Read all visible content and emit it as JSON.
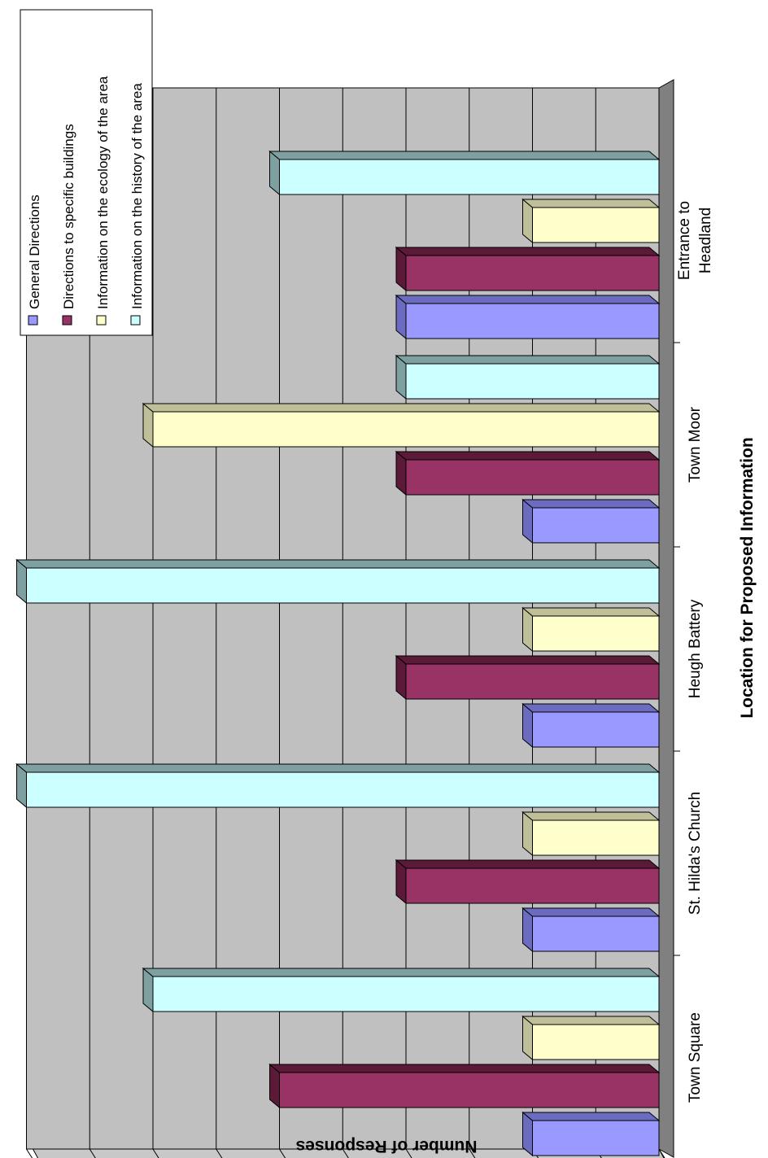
{
  "chart_data": {
    "type": "bar",
    "orientation": "3d-clustered-column, image rotated 90 degrees clockwise",
    "xlabel": "Location for Proposed Information",
    "ylabel": "Number of Responses",
    "ylim": [
      0,
      5
    ],
    "y_ticks": [
      "0",
      "0.5",
      "1",
      "1.5",
      "2",
      "2.5",
      "3",
      "3.5",
      "4",
      "4.5",
      "5"
    ],
    "grid": true,
    "legend_position": "top-right",
    "categories": [
      "Town Square",
      "St. Hilda's Church",
      "Heugh Battery",
      "Town Moor",
      "Entrance to Headland"
    ],
    "series": [
      {
        "name": "General Directions",
        "values": [
          1,
          1,
          1,
          1,
          2
        ],
        "color": "#9999ff"
      },
      {
        "name": "Directions to specific buildings",
        "values": [
          3,
          2,
          2,
          2,
          2
        ],
        "color": "#993366"
      },
      {
        "name": "Information on the ecology of the area",
        "values": [
          1,
          1,
          1,
          4,
          1
        ],
        "color": "#ffffcc"
      },
      {
        "name": "Information on the history of the area",
        "values": [
          4,
          5,
          5,
          2,
          3
        ],
        "color": "#ccffff"
      }
    ],
    "colors": {
      "wall": "#c0c0c0",
      "floor": "#808080",
      "gridline": "#000000",
      "history_top": "#7fa0a0",
      "buildings_top": "#5a1a38",
      "directions_top": "#6b6bbf",
      "ecology_top": "#bfbf99"
    }
  }
}
